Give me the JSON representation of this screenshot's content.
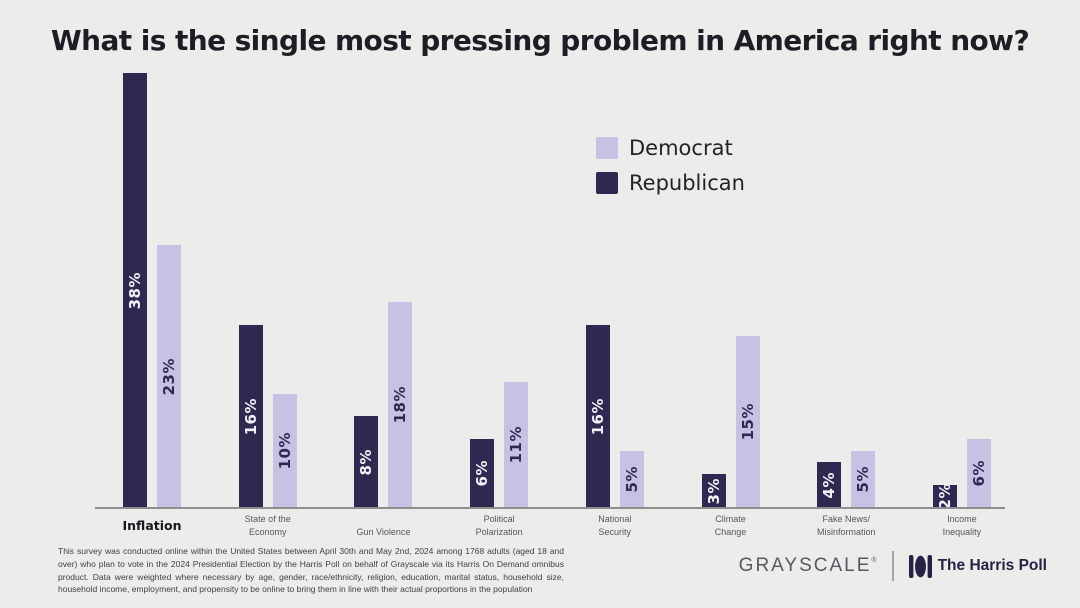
{
  "title": "What is the single most pressing problem in America right now?",
  "legend": {
    "items": [
      {
        "label": "Democrat",
        "color": "#c7c2e3"
      },
      {
        "label": "Republican",
        "color": "#2e2950"
      }
    ]
  },
  "chart_data": {
    "type": "bar",
    "title": "What is the single most pressing problem in America right now?",
    "categories": [
      "Inflation",
      "State of the Economy",
      "Gun Violence",
      "Political Polarization",
      "National Security",
      "Climate Change",
      "Fake News/Misinformation",
      "Income Inequality"
    ],
    "category_lines": [
      [
        "Inflation"
      ],
      [
        "State of the",
        "Economy"
      ],
      [
        "Gun Violence"
      ],
      [
        "Political",
        "Polarization"
      ],
      [
        "National",
        "Security"
      ],
      [
        "Climate",
        "Change"
      ],
      [
        "Fake News/",
        "Misinformation"
      ],
      [
        "Income",
        "Inequality"
      ]
    ],
    "series": [
      {
        "name": "Democrat",
        "color": "#c7c2e3",
        "label_color": "#2e2950",
        "values": [
          23,
          10,
          18,
          11,
          5,
          15,
          5,
          6
        ]
      },
      {
        "name": "Republican",
        "color": "#2e2950",
        "label_color": "#f2f1f7",
        "values": [
          38,
          16,
          8,
          6,
          16,
          3,
          4,
          2
        ]
      }
    ],
    "value_suffix": "%",
    "ylim": [
      0,
      40
    ],
    "grid": false,
    "legend_position": "upper-right",
    "bar_labels_rotated": true,
    "axis_color": "#8e8e8e",
    "highlight_category": "Inflation"
  },
  "footer": {
    "disclaimer": "This survey was conducted online within the United States between April 30th and May 2nd, 2024 among 1768 adults (aged 18 and over) who plan to vote in the 2024 Presidential Election by the Harris Poll on behalf of Grayscale via its Harris On Demand omnibus product. Data were weighted where necessary by age, gender, race/ethnicity, religion, education, marital status, household size, household income, employment, and propensity to be online to bring them in line with their actual proportions in the population",
    "brand_left": "GRAYSCALE",
    "brand_left_mark": "®",
    "brand_right": "The Harris Poll"
  },
  "colors": {
    "background": "#ececea",
    "title": "#1d1d26",
    "category_label": "#55555e",
    "footer_text": "#3f3f47",
    "grayscale_logo": "#585862",
    "harris_logo": "#262244"
  }
}
